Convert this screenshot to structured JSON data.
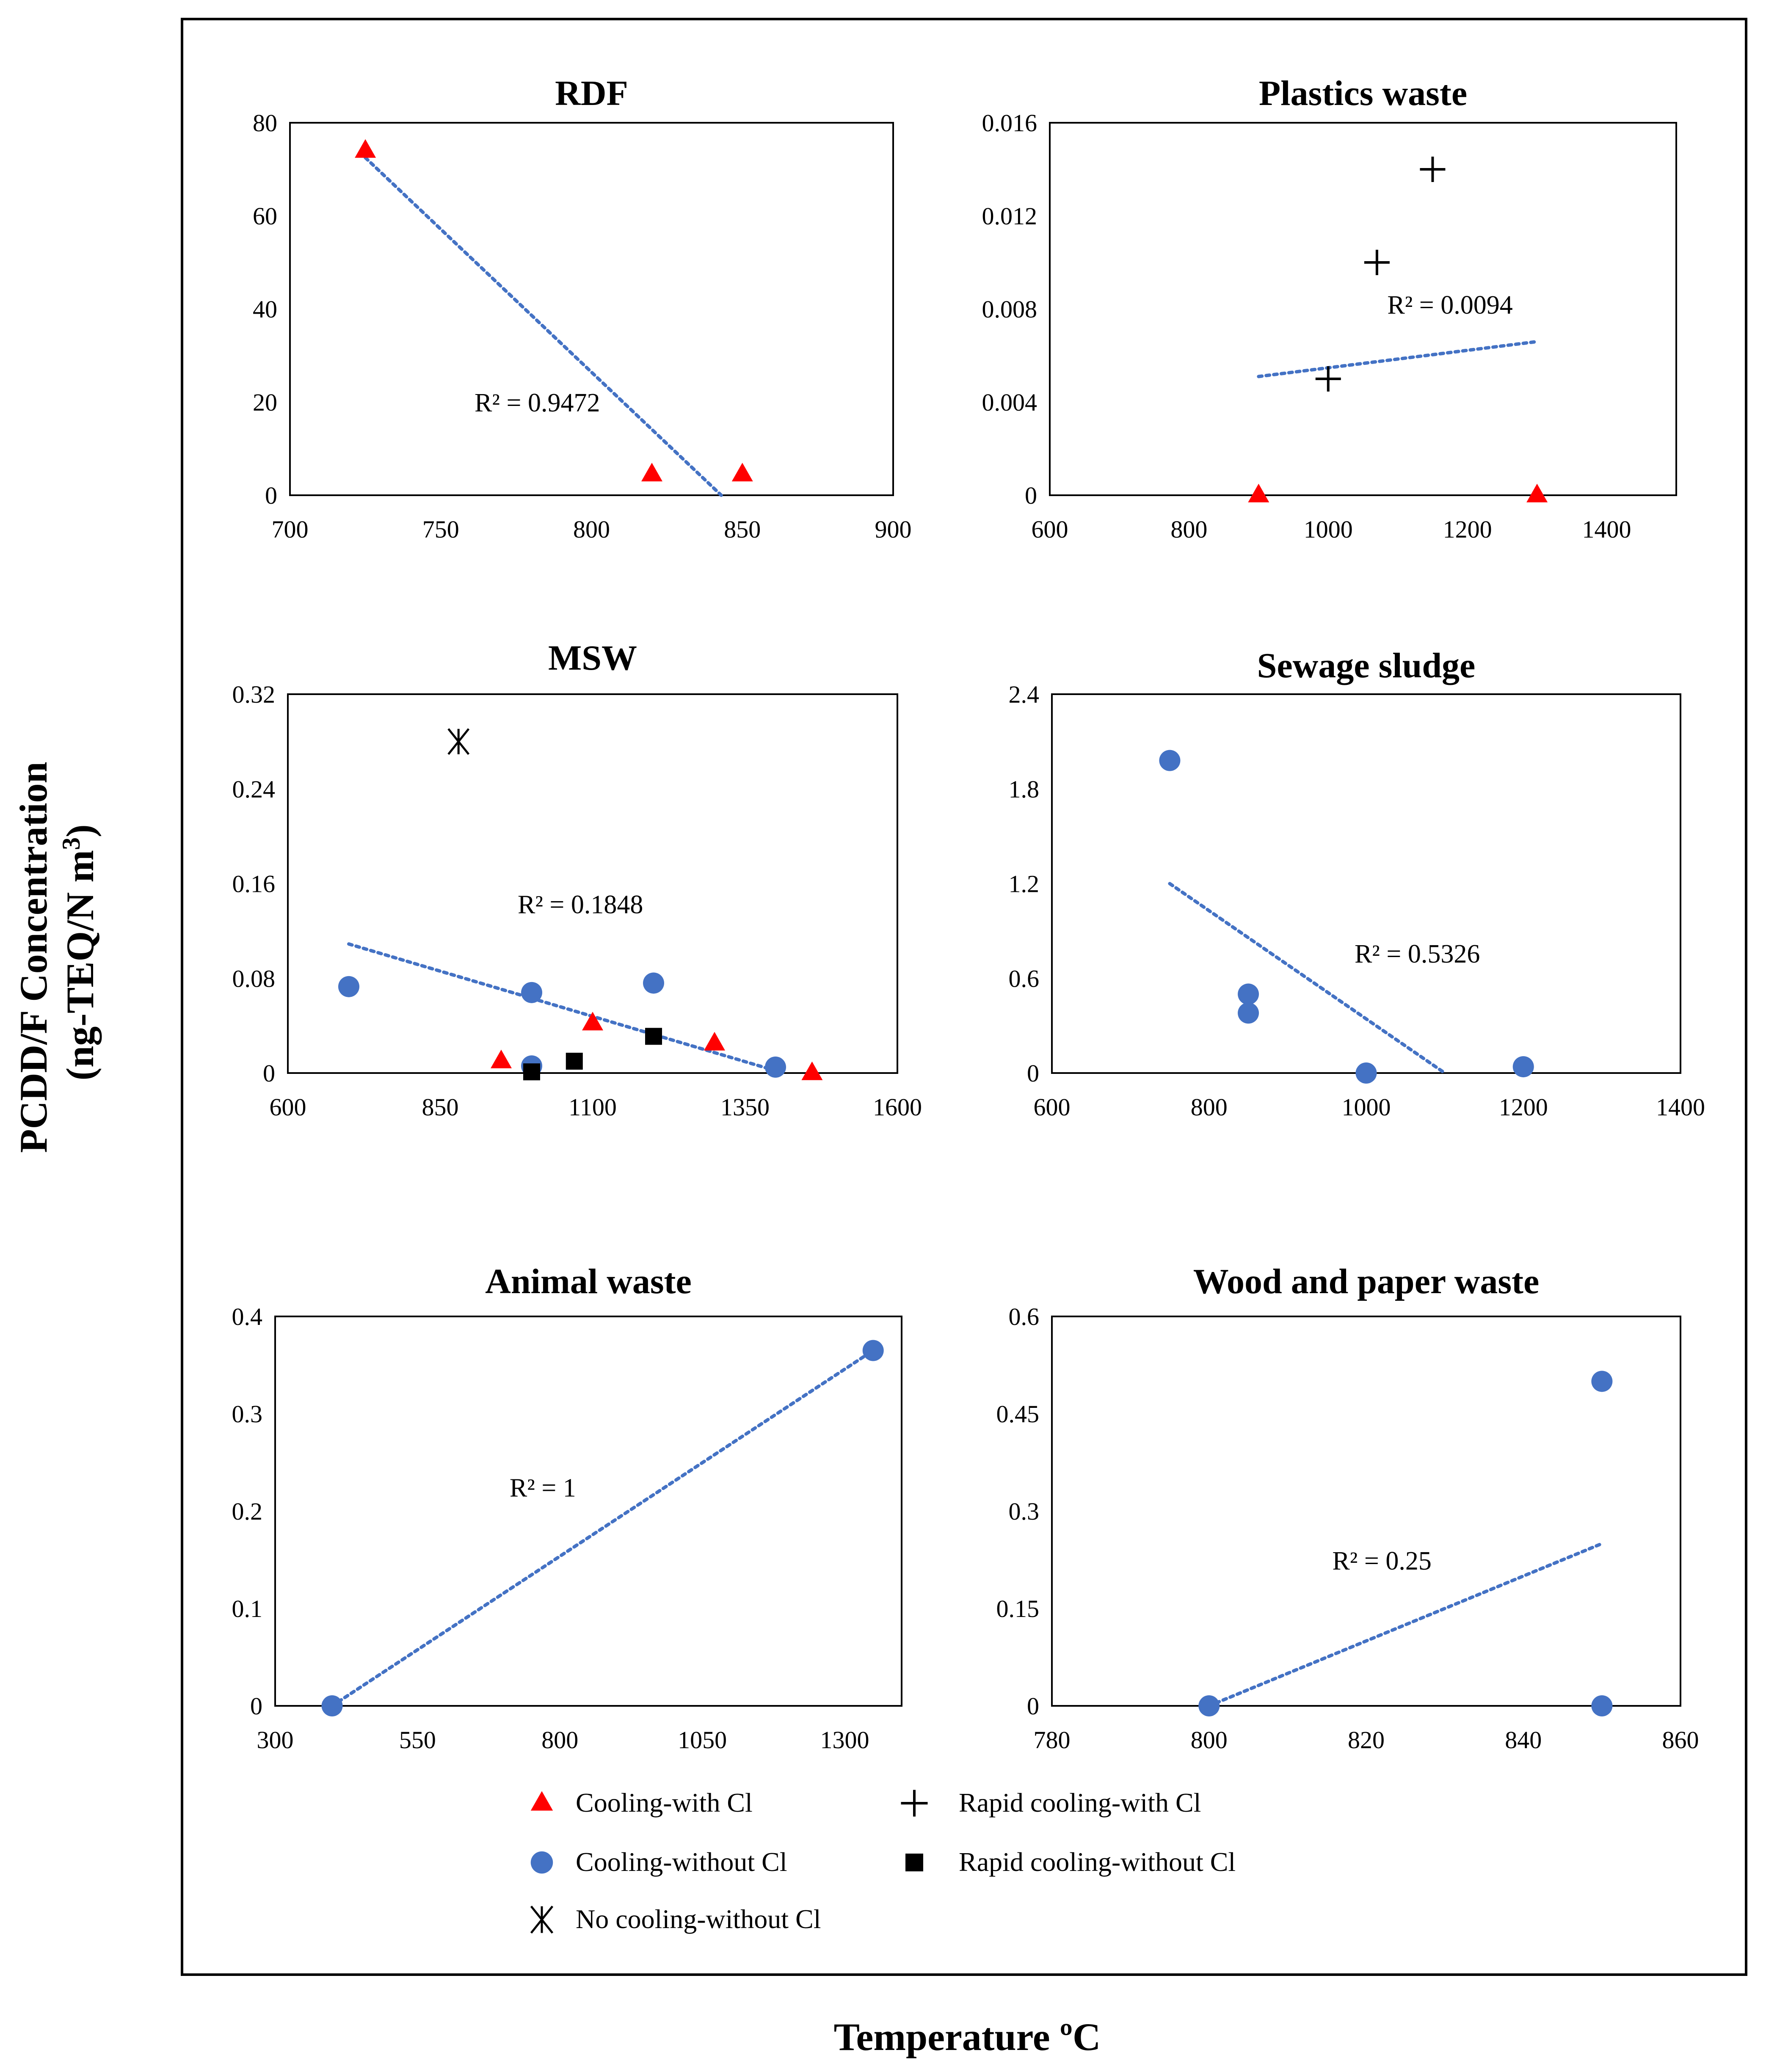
{
  "figure": {
    "y_axis_title_line1": "PCDD/F Concentration",
    "y_axis_title_line2": "(ng-TEQ/N m",
    "y_axis_title_sup": "3",
    "y_axis_title_end": ")",
    "x_axis_title": "Temperature ºC"
  },
  "colors": {
    "cooling_with_cl": "#FF0000",
    "cooling_without_cl": "#4472C4",
    "rapid": "#000000",
    "trendline": "#4472C4"
  },
  "legend": [
    {
      "key": "cooling-with-cl",
      "label": "Cooling-with Cl"
    },
    {
      "key": "rapid-cooling-with-cl",
      "label": "Rapid cooling-with Cl"
    },
    {
      "key": "cooling-without-cl",
      "label": "Cooling-without Cl"
    },
    {
      "key": "rapid-cooling-without-cl",
      "label": "Rapid cooling-without Cl"
    },
    {
      "key": "no-cooling-without-cl",
      "label": "No cooling-without Cl"
    }
  ],
  "chart_data": [
    {
      "id": "rdf",
      "type": "scatter",
      "title": "RDF",
      "xlim": [
        700,
        900
      ],
      "xticks": [
        700,
        750,
        800,
        850,
        900
      ],
      "ylim": [
        0,
        80
      ],
      "yticks": [
        0,
        20,
        40,
        60,
        80
      ],
      "ytick_labels": [
        "0",
        "20",
        "40",
        "60",
        "80"
      ],
      "series": [
        {
          "name": "Cooling-with Cl",
          "marker": "triangle",
          "points": [
            [
              725,
              74
            ],
            [
              820,
              4.5
            ],
            [
              850,
              4.5
            ]
          ]
        }
      ],
      "trendline": {
        "x0": 725,
        "y0": 72.5,
        "x1": 843,
        "y1": 0,
        "r2": "R² = 0.9472",
        "label_at": [
          782,
          18
        ]
      }
    },
    {
      "id": "plastics",
      "type": "scatter",
      "title": "Plastics waste",
      "xlim": [
        600,
        1500
      ],
      "xticks": [
        600,
        800,
        1000,
        1200,
        1400
      ],
      "ylim": [
        0,
        0.016
      ],
      "yticks": [
        0,
        0.004,
        0.008,
        0.012,
        0.016
      ],
      "ytick_labels": [
        "0",
        "0.004",
        "0.008",
        "0.012",
        "0.016"
      ],
      "series": [
        {
          "name": "Cooling-with Cl",
          "marker": "triangle",
          "points": [
            [
              900,
              0
            ],
            [
              1300,
              0
            ]
          ]
        },
        {
          "name": "Rapid cooling-with Cl",
          "marker": "plus",
          "points": [
            [
              1000,
              0.005
            ],
            [
              1070,
              0.01
            ],
            [
              1150,
              0.014
            ]
          ]
        }
      ],
      "trendline": {
        "x0": 900,
        "y0": 0.0051,
        "x1": 1300,
        "y1": 0.0066,
        "r2": "R² = 0.0094",
        "label_at": [
          1175,
          0.0078
        ]
      }
    },
    {
      "id": "msw",
      "type": "scatter",
      "title": "MSW",
      "xlim": [
        600,
        1600
      ],
      "xticks": [
        600,
        850,
        1100,
        1350,
        1600
      ],
      "ylim": [
        0,
        0.32
      ],
      "yticks": [
        0,
        0.08,
        0.16,
        0.24,
        0.32
      ],
      "ytick_labels": [
        "0",
        "0.08",
        "0.16",
        "0.24",
        "0.32"
      ],
      "series": [
        {
          "name": "Cooling-without Cl",
          "marker": "circle",
          "points": [
            [
              700,
              0.073
            ],
            [
              1000,
              0.068
            ],
            [
              1200,
              0.076
            ],
            [
              1000,
              0.006
            ],
            [
              1400,
              0.005
            ]
          ]
        },
        {
          "name": "Cooling-with Cl",
          "marker": "triangle",
          "points": [
            [
              950,
              0.01
            ],
            [
              1100,
              0.042
            ],
            [
              1300,
              0.025
            ],
            [
              1460,
              0
            ]
          ]
        },
        {
          "name": "Rapid cooling-without Cl",
          "marker": "square",
          "points": [
            [
              1000,
              0.001
            ],
            [
              1070,
              0.01
            ],
            [
              1200,
              0.031
            ]
          ]
        },
        {
          "name": "No cooling-without Cl",
          "marker": "asterisk",
          "points": [
            [
              880,
              0.28
            ]
          ]
        }
      ],
      "trendline": {
        "x0": 700,
        "y0": 0.109,
        "x1": 1400,
        "y1": 0.002,
        "r2": "R² = 0.1848",
        "label_at": [
          1080,
          0.135
        ]
      }
    },
    {
      "id": "sewage",
      "type": "scatter",
      "title": "Sewage sludge",
      "xlim": [
        600,
        1400
      ],
      "xticks": [
        600,
        800,
        1000,
        1200,
        1400
      ],
      "ylim": [
        0,
        2.4
      ],
      "yticks": [
        0,
        0.6,
        1.2,
        1.8,
        2.4
      ],
      "ytick_labels": [
        "0",
        "0.6",
        "1.2",
        "1.8",
        "2.4"
      ],
      "series": [
        {
          "name": "Cooling-without Cl",
          "marker": "circle",
          "points": [
            [
              750,
              1.98
            ],
            [
              850,
              0.5
            ],
            [
              850,
              0.38
            ],
            [
              1000,
              0
            ],
            [
              1200,
              0.04
            ]
          ]
        }
      ],
      "trendline": {
        "x0": 750,
        "y0": 1.2,
        "x1": 1100,
        "y1": 0,
        "r2": "R² = 0.5326",
        "label_at": [
          1065,
          0.7
        ]
      }
    },
    {
      "id": "animal",
      "type": "scatter",
      "title": "Animal waste",
      "xlim": [
        300,
        1400
      ],
      "xticks": [
        300,
        550,
        800,
        1050,
        1300
      ],
      "ylim": [
        0,
        0.4
      ],
      "yticks": [
        0,
        0.1,
        0.2,
        0.3,
        0.4
      ],
      "ytick_labels": [
        "0",
        "0.1",
        "0.2",
        "0.3",
        "0.4"
      ],
      "series": [
        {
          "name": "Cooling-without Cl",
          "marker": "circle",
          "points": [
            [
              400,
              0
            ],
            [
              1350,
              0.365
            ]
          ]
        }
      ],
      "trendline": {
        "x0": 400,
        "y0": 0,
        "x1": 1350,
        "y1": 0.365,
        "r2": "R² = 1",
        "label_at": [
          770,
          0.215
        ]
      }
    },
    {
      "id": "wood",
      "type": "scatter",
      "title": "Wood and paper waste",
      "xlim": [
        780,
        860
      ],
      "xticks": [
        780,
        800,
        820,
        840,
        860
      ],
      "ylim": [
        0,
        0.6
      ],
      "yticks": [
        0,
        0.15,
        0.3,
        0.45,
        0.6
      ],
      "ytick_labels": [
        "0",
        "0.15",
        "0.3",
        "0.45",
        "0.6"
      ],
      "series": [
        {
          "name": "Cooling-without Cl",
          "marker": "circle",
          "points": [
            [
              800,
              0
            ],
            [
              850,
              0.5
            ],
            [
              850,
              0
            ]
          ]
        }
      ],
      "trendline": {
        "x0": 800,
        "y0": 0,
        "x1": 850,
        "y1": 0.25,
        "r2": "R² = 0.25",
        "label_at": [
          822,
          0.21
        ]
      }
    }
  ]
}
